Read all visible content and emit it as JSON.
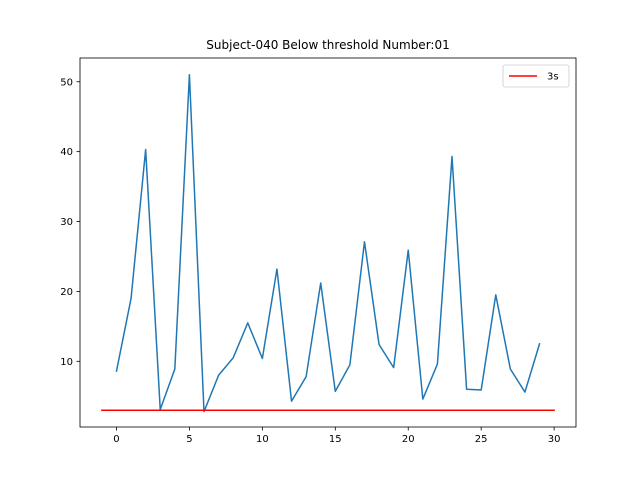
{
  "chart_data": {
    "type": "line",
    "title": "Subject-040   Below threshold Number:01",
    "xlabel": "",
    "ylabel": "",
    "xlim": [
      -2.5,
      31.5
    ],
    "ylim": [
      0.6,
      53.4
    ],
    "xticks": [
      0,
      5,
      10,
      15,
      20,
      25,
      30
    ],
    "yticks": [
      10,
      20,
      30,
      40,
      50
    ],
    "grid": false,
    "legend_position": "top-right",
    "series": [
      {
        "name": "",
        "color": "#1f77b4",
        "x": [
          0,
          1,
          2,
          3,
          4,
          5,
          6,
          7,
          8,
          9,
          10,
          11,
          12,
          13,
          14,
          15,
          16,
          17,
          18,
          19,
          20,
          21,
          22,
          23,
          24,
          25,
          26,
          27,
          28,
          29
        ],
        "y": [
          8.6,
          19.0,
          40.3,
          3.1,
          8.9,
          51.0,
          2.8,
          8.0,
          10.5,
          15.5,
          10.4,
          23.2,
          4.3,
          7.8,
          21.2,
          5.7,
          9.5,
          27.1,
          12.4,
          9.1,
          25.9,
          4.6,
          9.6,
          39.3,
          6.0,
          5.9,
          19.5,
          8.9,
          5.6,
          12.5
        ]
      },
      {
        "name": "3s",
        "color": "#ff0000",
        "x": [
          -1,
          30
        ],
        "y": [
          3.0,
          3.0
        ]
      }
    ]
  }
}
